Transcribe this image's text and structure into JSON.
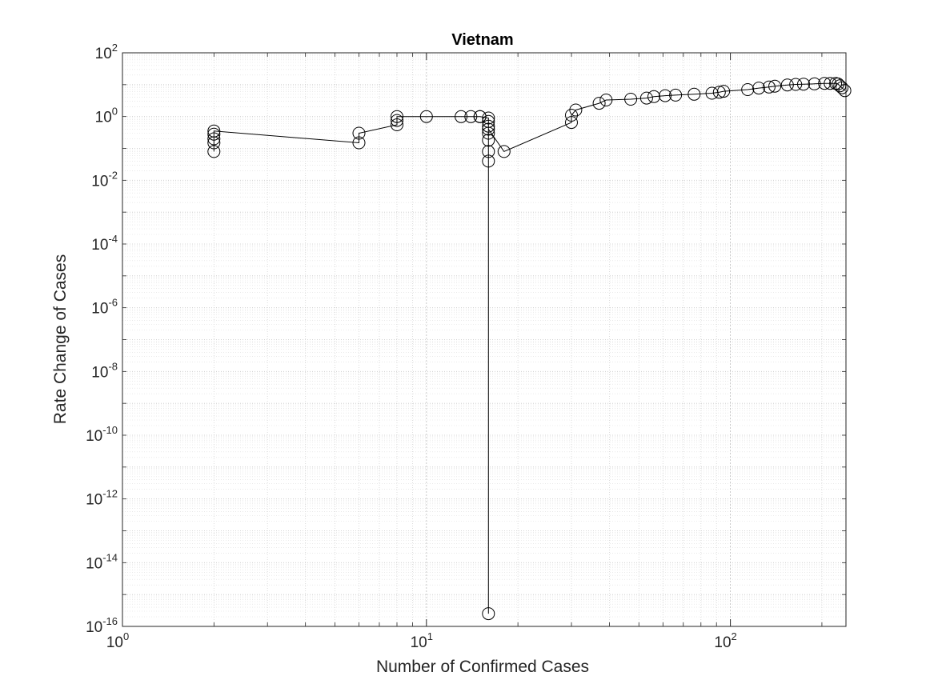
{
  "chart_data": {
    "type": "scatter",
    "title": "Vietnam",
    "xlabel": "Number of Confirmed Cases",
    "ylabel": "Rate Change of Cases",
    "xscale": "log",
    "yscale": "log",
    "xlim": [
      1,
      240
    ],
    "ylim": [
      1e-16,
      100
    ],
    "grid": true,
    "minor_grid": true,
    "x_ticks": [
      {
        "base": "10",
        "exp": "0"
      },
      {
        "base": "10",
        "exp": "1"
      },
      {
        "base": "10",
        "exp": "2"
      }
    ],
    "y_ticks": [
      {
        "base": "10",
        "exp": "-16"
      },
      {
        "base": "10",
        "exp": "-14"
      },
      {
        "base": "10",
        "exp": "-12"
      },
      {
        "base": "10",
        "exp": "-10"
      },
      {
        "base": "10",
        "exp": "-8"
      },
      {
        "base": "10",
        "exp": "-6"
      },
      {
        "base": "10",
        "exp": "-4"
      },
      {
        "base": "10",
        "exp": "-2"
      },
      {
        "base": "10",
        "exp": "0"
      },
      {
        "base": "10",
        "exp": "2"
      }
    ],
    "series": [
      {
        "marker": "open-circle",
        "line": "solid",
        "color": "#000000",
        "x": [
          2,
          2,
          2,
          2,
          2,
          6,
          6,
          8,
          8,
          8,
          10,
          13,
          14,
          15,
          15,
          16,
          16,
          16,
          16,
          16,
          16,
          16,
          16,
          16,
          18,
          30,
          30,
          31,
          37,
          39,
          47,
          53,
          56,
          61,
          66,
          76,
          87,
          92,
          95,
          114,
          124,
          134,
          140,
          154,
          164,
          174,
          189,
          204,
          213,
          222,
          226,
          229,
          233,
          238
        ],
        "y": [
          0.08,
          0.15,
          0.2,
          0.28,
          0.35,
          0.15,
          0.3,
          0.55,
          0.75,
          1.0,
          1.0,
          0.99,
          0.99,
          0.99,
          1.0,
          0.9,
          0.7,
          0.5,
          0.3,
          0.18,
          0.08,
          0.04,
          2.5e-16,
          0.4,
          0.08,
          0.65,
          1.1,
          1.6,
          2.6,
          3.3,
          3.5,
          3.8,
          4.2,
          4.5,
          4.7,
          5.0,
          5.4,
          5.8,
          6.2,
          7.0,
          7.8,
          8.4,
          9.0,
          9.8,
          10.2,
          10.4,
          10.6,
          11.0,
          11.0,
          11.0,
          10.5,
          9.2,
          8.0,
          6.5
        ]
      }
    ]
  }
}
